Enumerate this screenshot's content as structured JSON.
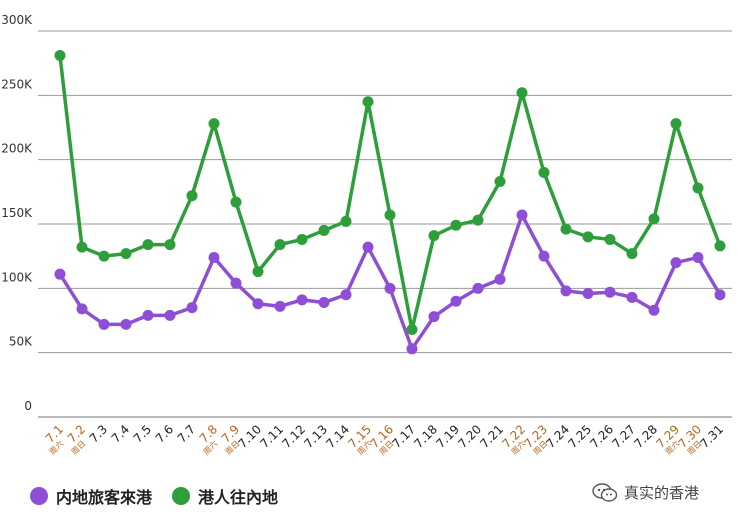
{
  "chart_data": {
    "type": "line",
    "categories": [
      "7.1",
      "7.2",
      "7.3",
      "7.4",
      "7.5",
      "7.6",
      "7.7",
      "7.8",
      "7.9",
      "7.10",
      "7.11",
      "7.12",
      "7.13",
      "7.14",
      "7.15",
      "7.16",
      "7.17",
      "7.18",
      "7.19",
      "7.20",
      "7.21",
      "7.22",
      "7.23",
      "7.24",
      "7.25",
      "7.26",
      "7.27",
      "7.28",
      "7.29",
      "7.30",
      "7.31"
    ],
    "weekday_labels": [
      "周六",
      "周日",
      "",
      "",
      "",
      "",
      "",
      "周六",
      "周日",
      "",
      "",
      "",
      "",
      "",
      "周六",
      "周日",
      "",
      "",
      "",
      "",
      "",
      "周六",
      "周日",
      "",
      "",
      "",
      "",
      "",
      "周六",
      "周日",
      ""
    ],
    "weekend": [
      true,
      true,
      false,
      false,
      false,
      false,
      false,
      true,
      true,
      false,
      false,
      false,
      false,
      false,
      true,
      true,
      false,
      false,
      false,
      false,
      false,
      true,
      true,
      false,
      false,
      false,
      false,
      false,
      true,
      true,
      false
    ],
    "series": [
      {
        "name": "内地旅客來港",
        "color": "#8e4fd6",
        "values": [
          111000,
          84000,
          72000,
          72000,
          79000,
          79000,
          85000,
          124000,
          104000,
          88000,
          86000,
          91000,
          89000,
          95000,
          132000,
          100000,
          53000,
          78000,
          90000,
          100000,
          107000,
          157000,
          125000,
          98000,
          96000,
          97000,
          93000,
          83000,
          120000,
          124000,
          95000
        ]
      },
      {
        "name": "港人往內地",
        "color": "#2e9e3a",
        "values": [
          281000,
          132000,
          125000,
          127000,
          134000,
          134000,
          172000,
          228000,
          167000,
          113000,
          134000,
          138000,
          145000,
          152000,
          245000,
          157000,
          68000,
          141000,
          149000,
          153000,
          183000,
          252000,
          190000,
          146000,
          140000,
          138000,
          127000,
          154000,
          228000,
          178000,
          133000
        ]
      }
    ],
    "ylim": [
      0,
      300000
    ],
    "yticks": [
      0,
      50000,
      100000,
      150000,
      200000,
      250000,
      300000
    ],
    "ytick_labels": [
      "0",
      "50K",
      "100K",
      "150K",
      "200K",
      "250K",
      "300K"
    ],
    "grid": true,
    "legend_position": "bottom-left",
    "weekend_label_color": "#b5651d",
    "weekday_label_color": "#222222"
  },
  "watermark": {
    "text": "真实的香港",
    "icon": "wechat-icon"
  }
}
